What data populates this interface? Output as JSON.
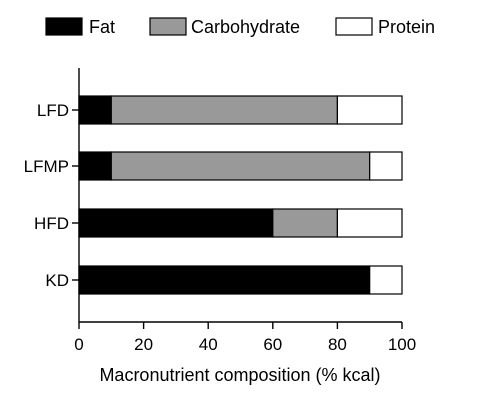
{
  "chart_data": {
    "type": "bar",
    "orientation": "horizontal",
    "stacked": true,
    "categories": [
      "LFD",
      "LFMP",
      "HFD",
      "KD"
    ],
    "series": [
      {
        "name": "Fat",
        "color": "#000000",
        "values": [
          10,
          10,
          60,
          90
        ]
      },
      {
        "name": "Carbohydrate",
        "color": "#999999",
        "values": [
          70,
          80,
          20,
          0
        ]
      },
      {
        "name": "Protein",
        "color": "#ffffff",
        "values": [
          20,
          10,
          20,
          10
        ]
      }
    ],
    "xlabel": "Macronutrient composition (% kcal)",
    "xlim": [
      0,
      100
    ],
    "xticks": [
      0,
      20,
      40,
      60,
      80,
      100
    ],
    "legend_position": "top",
    "grid": false
  }
}
